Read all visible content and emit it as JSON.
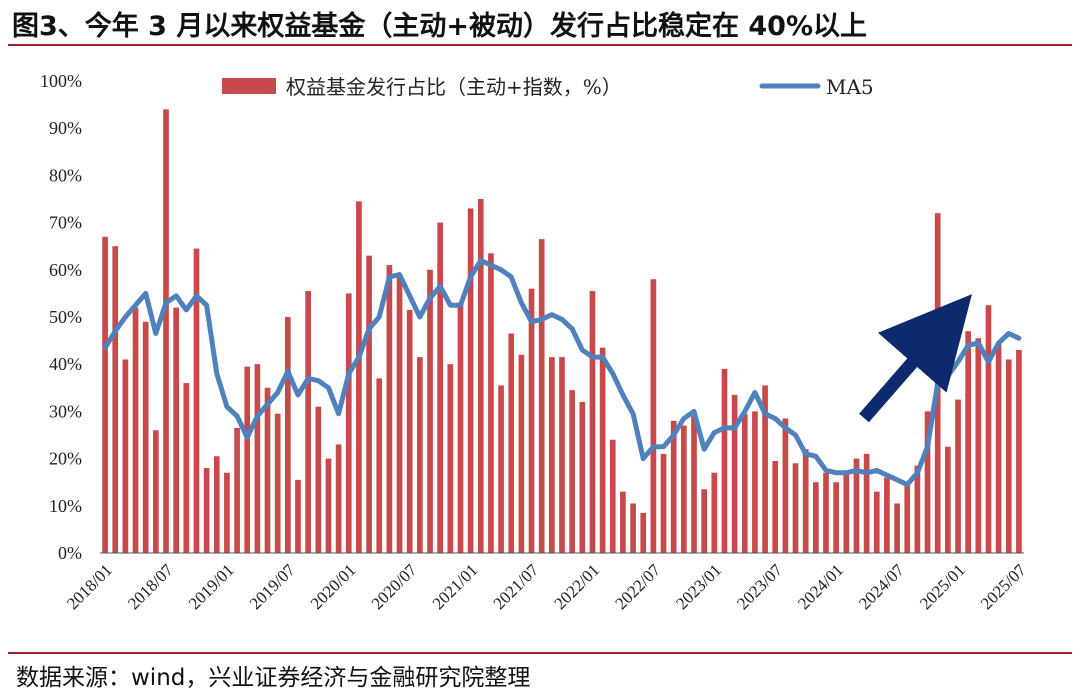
{
  "title": "图3、今年 3 月以来权益基金（主动+被动）发行占比稳定在 40%以上",
  "source": "数据来源：wind，兴业证券经济与金融研究院整理",
  "colors": {
    "bar": "#c8494a",
    "line": "#4f81bd",
    "arrow": "#0d2a6e",
    "rule": "#a31f24"
  },
  "chart_data": {
    "type": "bar+line",
    "title": "",
    "xlabel": "",
    "ylabel": "",
    "ylim": [
      0,
      100
    ],
    "y_ticks": [
      "0%",
      "10%",
      "20%",
      "30%",
      "40%",
      "50%",
      "60%",
      "70%",
      "80%",
      "90%",
      "100%"
    ],
    "x_tick_labels": [
      "2018/01",
      "2018/07",
      "2019/01",
      "2019/07",
      "2020/01",
      "2020/07",
      "2021/01",
      "2021/07",
      "2022/01",
      "2022/07",
      "2023/01",
      "2023/07",
      "2024/01",
      "2024/07",
      "2025/01",
      "2025/07"
    ],
    "legend_position": "top",
    "grid": false,
    "start_month": "2018/01",
    "series": [
      {
        "name": "权益基金发行占比（主动+指数，%）",
        "type": "bar",
        "values": [
          67,
          65,
          41,
          52,
          49,
          26,
          94,
          52,
          36,
          64.5,
          18,
          20.5,
          17,
          26.5,
          39.5,
          40,
          35,
          29.5,
          50,
          15.5,
          55.5,
          31,
          20,
          23,
          55,
          74.5,
          63,
          37,
          61,
          59,
          51.5,
          41.5,
          60,
          70,
          40,
          53,
          73,
          75,
          63.5,
          35.5,
          46.5,
          42,
          56,
          66.5,
          41.5,
          41.5,
          34.5,
          32,
          55.5,
          43.5,
          24,
          13,
          10.5,
          8.5,
          58,
          21,
          28,
          27,
          29,
          13.5,
          17,
          39,
          33.5,
          29.5,
          30,
          35.5,
          19.5,
          28.5,
          19,
          22,
          15,
          17,
          15,
          17,
          20,
          21,
          13,
          16,
          10.5,
          15,
          18.5,
          30,
          72,
          22.5,
          32.5,
          47,
          45.5,
          52.5,
          44.5,
          41,
          43
        ]
      },
      {
        "name": "MA5",
        "type": "line",
        "values": [
          43.5,
          47,
          50,
          52.5,
          55,
          46.5,
          53,
          54.5,
          51.5,
          54.5,
          52.5,
          38,
          31,
          29,
          24.5,
          29,
          31.5,
          34,
          38.5,
          33.5,
          37,
          36.5,
          35,
          29.5,
          38,
          41.5,
          47.5,
          50,
          58.5,
          59,
          54.5,
          50,
          54,
          56.5,
          52.5,
          52.5,
          58.5,
          62,
          61,
          60,
          58.5,
          53,
          49,
          49.5,
          50.5,
          49.5,
          47.5,
          43,
          41.5,
          41.5,
          38,
          33.5,
          29.5,
          20,
          22.5,
          22.5,
          25,
          28.5,
          30,
          22,
          25.5,
          26.5,
          26.5,
          30,
          34,
          29.5,
          28.5,
          26.5,
          25,
          21,
          20.5,
          17.5,
          17,
          17,
          17.5,
          17,
          17.5,
          16.5,
          15.5,
          14.5,
          17,
          22.5,
          36,
          37.5,
          40.5,
          44,
          44.5,
          40.5,
          44.5,
          46.5,
          45.5
        ]
      }
    ]
  }
}
